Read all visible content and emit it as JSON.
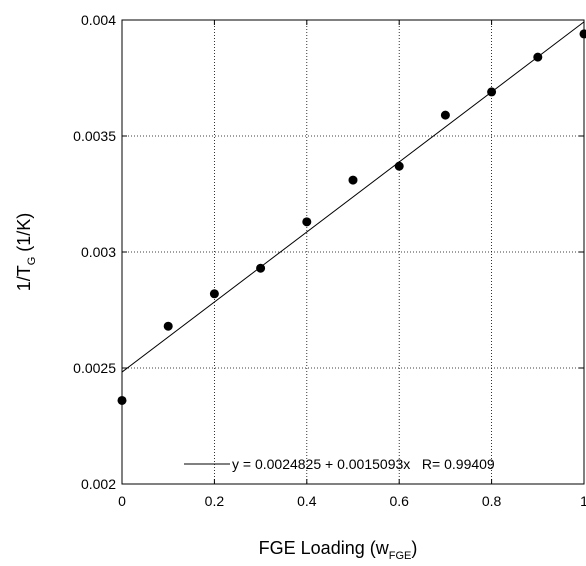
{
  "chart_data": {
    "type": "scatter",
    "title": "",
    "x_scale": "linear",
    "y_scale": "linear",
    "xlim": [
      0,
      1
    ],
    "ylim": [
      0.002,
      0.004
    ],
    "x_ticks": [
      0,
      0.2,
      0.4,
      0.6,
      0.8,
      1
    ],
    "x_tick_labels": [
      "0",
      "0.2",
      "0.4",
      "0.6",
      "0.8",
      "1"
    ],
    "y_ticks": [
      0.002,
      0.0025,
      0.003,
      0.0035,
      0.004
    ],
    "y_tick_labels": [
      "0.002",
      "0.0025",
      "0.003",
      "0.0035",
      "0.004"
    ],
    "xlabel": {
      "main": "FGE Loading (w",
      "subscript": "FGE",
      "end": ")"
    },
    "ylabel": {
      "main": "1/T",
      "subscript": "G",
      "end": " (1/K)"
    },
    "grid": true,
    "grid_style": "dotted",
    "legend_position": "bottom-right",
    "series": [
      {
        "type": "scatter",
        "marker": "filled-circle",
        "color": "#000000",
        "x": [
          0,
          0.1,
          0.2,
          0.3,
          0.4,
          0.5,
          0.6,
          0.7,
          0.8,
          0.9,
          1.0
        ],
        "y": [
          0.00236,
          0.00268,
          0.00282,
          0.00293,
          0.00313,
          0.00331,
          0.00337,
          0.00359,
          0.00369,
          0.00384,
          0.00394
        ]
      },
      {
        "type": "line",
        "name": "y = 0.0024825 + 0.0015093x   R= 0.99409",
        "color": "#000000",
        "intercept": 0.0024825,
        "slope": 0.0015093,
        "x": [
          0,
          1
        ]
      }
    ]
  }
}
